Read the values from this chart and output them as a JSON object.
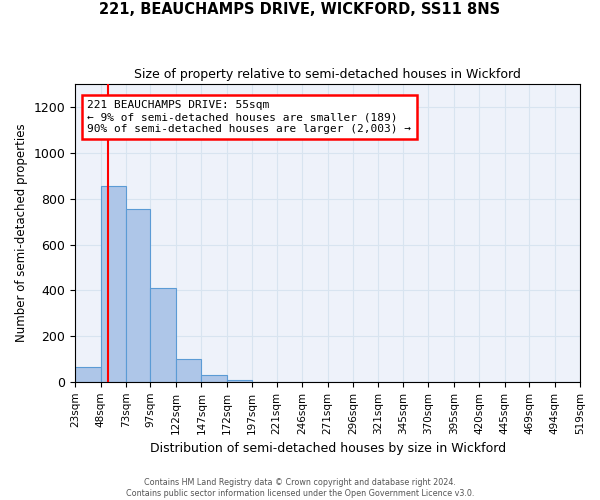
{
  "title": "221, BEAUCHAMPS DRIVE, WICKFORD, SS11 8NS",
  "subtitle": "Size of property relative to semi-detached houses in Wickford",
  "xlabel": "Distribution of semi-detached houses by size in Wickford",
  "ylabel": "Number of semi-detached properties",
  "footer_line1": "Contains HM Land Registry data © Crown copyright and database right 2024.",
  "footer_line2": "Contains public sector information licensed under the Open Government Licence v3.0.",
  "bin_edges": [
    23,
    48,
    73,
    97,
    122,
    147,
    172,
    197,
    221,
    246,
    271,
    296,
    321,
    345,
    370,
    395,
    420,
    445,
    469,
    494,
    519
  ],
  "bar_heights": [
    65,
    855,
    755,
    410,
    100,
    30,
    10,
    0,
    0,
    0,
    0,
    0,
    0,
    0,
    0,
    0,
    0,
    0,
    0,
    0
  ],
  "bar_color": "#aec6e8",
  "bar_edge_color": "#5b9bd5",
  "red_line_x": 55,
  "ylim": [
    0,
    1300
  ],
  "yticks": [
    0,
    200,
    400,
    600,
    800,
    1000,
    1200
  ],
  "annotation_line1": "221 BEAUCHAMPS DRIVE: 55sqm",
  "annotation_line2": "← 9% of semi-detached houses are smaller (189)",
  "annotation_line3": "90% of semi-detached houses are larger (2,003) →",
  "annotation_box_color": "white",
  "annotation_box_edge_color": "red",
  "grid_color": "#d8e4f0",
  "background_color": "#eef2fa"
}
